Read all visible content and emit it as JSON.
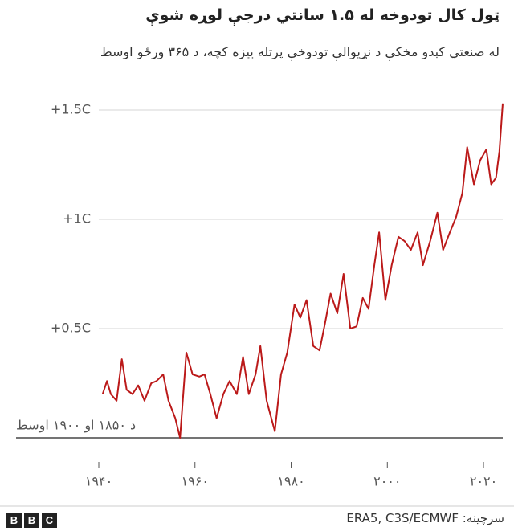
{
  "chart_data": {
    "type": "line",
    "title": "ټول کال تودوخه له ۱.۵ سانتي درجې لوړه شوې",
    "subtitle": "له صنعتي کېدو مخکې د نړيوالې تودوخې پرتله ييزه کچه، د ۳۶۵ ورځو اوسط",
    "source": "سرچینه: ERA5, C3S/ECMWF",
    "x": [
      1940.8,
      1941.7,
      1942.5,
      1943.7,
      1944.8,
      1945.8,
      1947.0,
      1948.2,
      1949.5,
      1950.9,
      1952.0,
      1953.4,
      1954.5,
      1955.9,
      1956.9,
      1958.2,
      1959.5,
      1960.9,
      1962.0,
      1963.2,
      1964.5,
      1965.9,
      1967.2,
      1968.7,
      1970.0,
      1971.2,
      1972.6,
      1973.6,
      1974.9,
      1976.6,
      1977.9,
      1979.2,
      1980.7,
      1981.9,
      1983.2,
      1984.6,
      1985.9,
      1987.1,
      1988.2,
      1989.6,
      1990.9,
      1992.3,
      1993.6,
      1994.9,
      1996.1,
      1997.3,
      1998.3,
      1999.6,
      2000.9,
      2002.3,
      2003.6,
      2004.9,
      2006.3,
      2007.4,
      2008.9,
      2010.4,
      2011.6,
      2013.0,
      2014.3,
      2015.6,
      2016.6,
      2018.0,
      2019.3,
      2020.6,
      2021.6,
      2022.6,
      2023.3,
      2024.0
    ],
    "series": [
      {
        "color": "#bb1919",
        "values": [
          0.2,
          0.26,
          0.2,
          0.17,
          0.36,
          0.22,
          0.2,
          0.24,
          0.17,
          0.25,
          0.26,
          0.29,
          0.17,
          0.09,
          0.0,
          0.39,
          0.29,
          0.28,
          0.29,
          0.2,
          0.09,
          0.2,
          0.26,
          0.2,
          0.37,
          0.2,
          0.29,
          0.42,
          0.17,
          0.03,
          0.29,
          0.39,
          0.61,
          0.55,
          0.63,
          0.42,
          0.4,
          0.53,
          0.66,
          0.57,
          0.75,
          0.5,
          0.51,
          0.64,
          0.59,
          0.79,
          0.94,
          0.63,
          0.79,
          0.92,
          0.9,
          0.86,
          0.94,
          0.79,
          0.9,
          1.03,
          0.86,
          0.94,
          1.01,
          1.12,
          1.33,
          1.16,
          1.27,
          1.32,
          1.16,
          1.19,
          1.31,
          1.53
        ]
      }
    ],
    "xlim": [
      1940,
      2024
    ],
    "xticks": [
      {
        "value": 1940,
        "label": "۱۹۴۰"
      },
      {
        "value": 1960,
        "label": "۱۹۶۰"
      },
      {
        "value": 1980,
        "label": "۱۹۸۰"
      },
      {
        "value": 2000,
        "label": "۲۰۰۰"
      },
      {
        "value": 2020,
        "label": "۲۰۲۰"
      }
    ],
    "ylim": [
      0,
      1.5
    ],
    "yticks": [
      {
        "value": 0,
        "label": "د ۱۸۵۰ او ۱۹۰۰ اوسط"
      },
      {
        "value": 0.5,
        "label": "+0.5C"
      },
      {
        "value": 1,
        "label": "+1C"
      },
      {
        "value": 1.5,
        "label": "+1.5C"
      }
    ],
    "grid": true
  }
}
